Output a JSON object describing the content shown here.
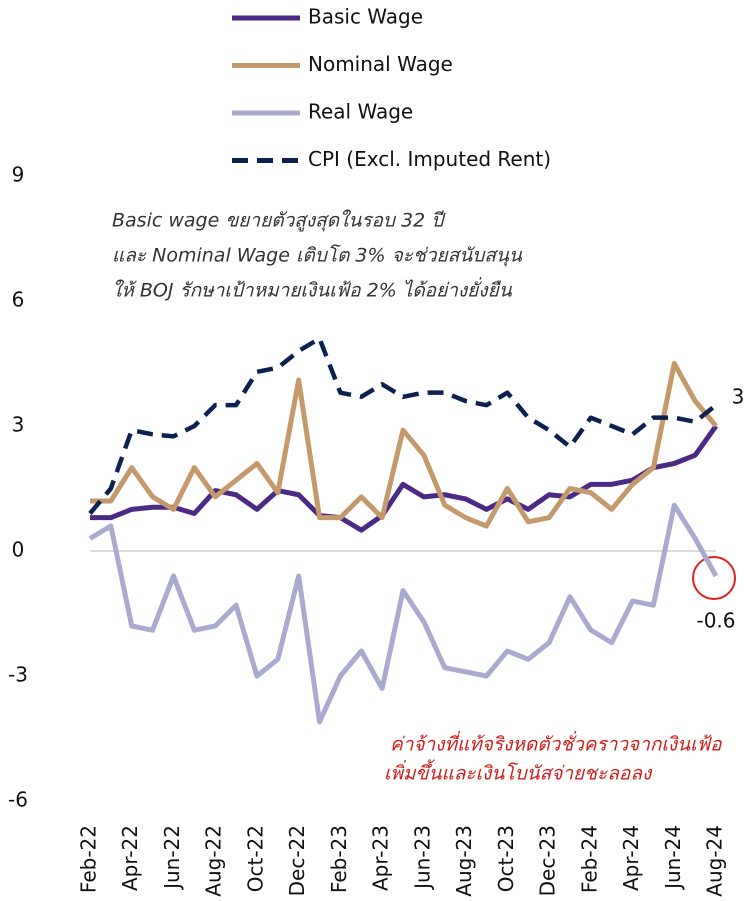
{
  "chart_data": {
    "type": "line",
    "categories": [
      "Feb-22",
      null,
      "Apr-22",
      null,
      "Jun-22",
      null,
      "Aug-22",
      null,
      "Oct-22",
      null,
      "Dec-22",
      null,
      "Feb-23",
      null,
      "Apr-23",
      null,
      "Jun-23",
      null,
      "Aug-23",
      null,
      "Oct-23",
      null,
      "Dec-23",
      null,
      "Feb-24",
      null,
      "Apr-24",
      null,
      "Jun-24",
      null,
      "Aug-24"
    ],
    "series": [
      {
        "name": "Basic Wage",
        "color": "#4b2a85",
        "dash": false,
        "values": [
          0.8,
          0.8,
          1.0,
          1.05,
          1.05,
          0.9,
          1.45,
          1.35,
          1.0,
          1.45,
          1.35,
          0.85,
          0.8,
          0.5,
          0.85,
          1.6,
          1.3,
          1.35,
          1.25,
          1.0,
          1.25,
          1.0,
          1.35,
          1.3,
          1.6,
          1.6,
          1.7,
          2.0,
          2.1,
          2.3,
          3
        ]
      },
      {
        "name": "Nominal Wage",
        "color": "#c49a6c",
        "dash": false,
        "values": [
          1.2,
          1.2,
          2.0,
          1.3,
          1.0,
          2.0,
          1.3,
          1.7,
          2.1,
          1.4,
          4.1,
          0.8,
          0.8,
          1.3,
          0.8,
          2.9,
          2.3,
          1.1,
          0.8,
          0.6,
          1.5,
          0.7,
          0.8,
          1.5,
          1.4,
          1.0,
          1.6,
          2.0,
          4.5,
          3.6,
          3.0
        ]
      },
      {
        "name": "Real Wage",
        "color": "#aaaacf",
        "dash": false,
        "values": [
          0.3,
          0.6,
          -1.8,
          -1.9,
          -0.6,
          -1.9,
          -1.8,
          -1.3,
          -3.0,
          -2.6,
          -0.6,
          -4.1,
          -3.0,
          -2.4,
          -3.3,
          -0.95,
          -1.7,
          -2.8,
          -2.9,
          -3.0,
          -2.4,
          -2.6,
          -2.2,
          -1.1,
          -1.9,
          -2.2,
          -1.2,
          -1.3,
          1.1,
          0.3,
          -0.6
        ]
      },
      {
        "name": "CPI (Excl. Imputed Rent)",
        "color": "#0d2150",
        "dash": true,
        "values": [
          0.9,
          1.5,
          2.9,
          2.8,
          2.75,
          3.0,
          3.5,
          3.5,
          4.3,
          4.4,
          4.8,
          5.1,
          3.8,
          3.7,
          4.0,
          3.7,
          3.8,
          3.8,
          3.6,
          3.5,
          3.8,
          3.2,
          2.9,
          2.5,
          3.2,
          3.0,
          2.8,
          3.2,
          3.2,
          3.1,
          3.5
        ]
      }
    ],
    "ylim": [
      -6,
      9
    ],
    "yticks": [
      -6,
      -3,
      0,
      3,
      6,
      9
    ],
    "annotations": [
      "Basic wage ขยายตัวสูงสุดในรอบ 32 ปี",
      "และ Nominal Wage เติบโต 3% จะช่วยสนับสนุน",
      "ให้ BOJ รักษาเป้าหมายเงินเฟ้อ 2% ได้อย่างยั่งยืน"
    ],
    "annotations_red": [
      "ค่าจ้างที่แท้จริงหดตัวชั่วคราวจากเงินเฟ้อ",
      "เพิ่มขึ้นและเงินโบนัสจ่ายชะลอลง"
    ]
  }
}
